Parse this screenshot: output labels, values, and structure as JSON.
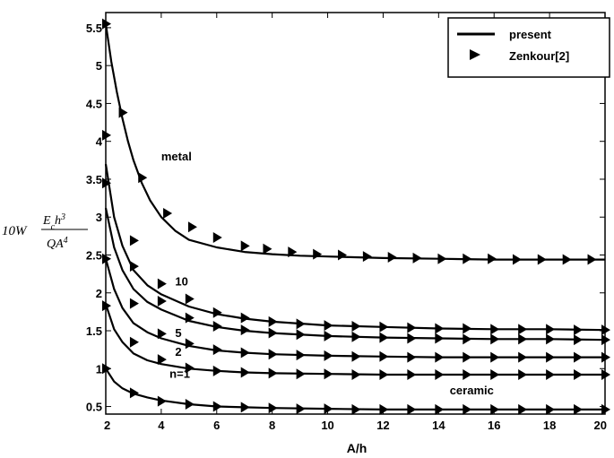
{
  "chart_data": {
    "type": "line",
    "title": "",
    "xlabel": "A/h",
    "ylabel": {
      "prefix": "10W",
      "numerator": "E_c h^3",
      "denominator": "QA^4"
    },
    "xlim": [
      2,
      20
    ],
    "ylim": [
      0.4,
      5.7
    ],
    "xticks": [
      2,
      4,
      6,
      8,
      10,
      12,
      14,
      16,
      18,
      20
    ],
    "yticks": [
      0.5,
      1,
      1.5,
      2,
      2.5,
      3,
      3.5,
      4,
      4.5,
      5,
      5.5
    ],
    "grid": false,
    "legend": {
      "position": "top-right",
      "entries": [
        {
          "label": "present",
          "marker": "line"
        },
        {
          "label": "Zenkour[2]",
          "marker": "triangle-right"
        }
      ]
    },
    "series": [
      {
        "name": "metal",
        "label_pos": [
          4.0,
          3.75
        ],
        "line_x": [
          2.0,
          2.2,
          2.4,
          2.6,
          2.8,
          3.0,
          3.3,
          3.6,
          4.0,
          4.5,
          5.0,
          6.0,
          7.0,
          8.0,
          9.0,
          10.0,
          12.0,
          14.0,
          16.0,
          18.0,
          20.0
        ],
        "line_y": [
          5.55,
          5.05,
          4.65,
          4.3,
          4.0,
          3.75,
          3.45,
          3.22,
          3.0,
          2.82,
          2.7,
          2.6,
          2.54,
          2.51,
          2.49,
          2.48,
          2.46,
          2.45,
          2.44,
          2.44,
          2.44
        ],
        "markers_x": [
          2.0,
          2.6,
          3.3,
          4.2,
          5.1,
          6.0,
          7.0,
          7.8,
          8.7,
          9.6,
          10.5,
          11.4,
          12.3,
          13.2,
          14.1,
          15.0,
          15.9,
          16.8,
          17.7,
          18.6,
          19.5
        ],
        "markers_y": [
          5.55,
          4.38,
          3.52,
          3.05,
          2.87,
          2.73,
          2.62,
          2.58,
          2.54,
          2.51,
          2.5,
          2.48,
          2.47,
          2.46,
          2.45,
          2.45,
          2.45,
          2.44,
          2.44,
          2.44,
          2.44
        ]
      },
      {
        "name": "10",
        "label_pos": [
          4.5,
          2.1
        ],
        "line_x": [
          2.0,
          2.3,
          2.6,
          3.0,
          3.5,
          4.0,
          5.0,
          6.0,
          7.0,
          8.0,
          10.0,
          12.0,
          14.0,
          16.0,
          18.0,
          20.0
        ],
        "line_y": [
          3.7,
          3.0,
          2.62,
          2.3,
          2.1,
          1.98,
          1.82,
          1.72,
          1.66,
          1.62,
          1.57,
          1.55,
          1.53,
          1.52,
          1.52,
          1.51
        ],
        "markers_x": [
          2.0,
          3.0,
          4.0,
          5.0,
          6.0,
          7.0,
          8.0,
          9.0,
          10.0,
          11.0,
          12.0,
          13.0,
          14.0,
          15.0,
          16.0,
          17.0,
          18.0,
          19.0,
          20.0
        ],
        "markers_y": [
          4.08,
          2.69,
          2.12,
          1.92,
          1.74,
          1.67,
          1.62,
          1.59,
          1.57,
          1.56,
          1.55,
          1.54,
          1.53,
          1.53,
          1.52,
          1.52,
          1.52,
          1.51,
          1.51
        ]
      },
      {
        "name": "5",
        "label_pos": [
          4.5,
          1.42
        ],
        "line_x": [
          2.0,
          2.3,
          2.6,
          3.0,
          3.5,
          4.0,
          5.0,
          6.0,
          7.0,
          8.0,
          10.0,
          12.0,
          14.0,
          16.0,
          18.0,
          20.0
        ],
        "line_y": [
          3.12,
          2.6,
          2.3,
          2.05,
          1.88,
          1.78,
          1.63,
          1.55,
          1.5,
          1.47,
          1.43,
          1.41,
          1.4,
          1.39,
          1.39,
          1.38
        ],
        "markers_x": [
          2.0,
          3.0,
          4.0,
          5.0,
          6.0,
          7.0,
          8.0,
          9.0,
          10.0,
          11.0,
          12.0,
          13.0,
          14.0,
          15.0,
          16.0,
          17.0,
          18.0,
          19.0,
          20.0
        ],
        "markers_y": [
          3.45,
          2.35,
          1.89,
          1.67,
          1.56,
          1.51,
          1.47,
          1.45,
          1.43,
          1.42,
          1.41,
          1.4,
          1.4,
          1.39,
          1.39,
          1.39,
          1.39,
          1.38,
          1.38
        ]
      },
      {
        "name": "2",
        "label_pos": [
          4.5,
          1.17
        ],
        "line_x": [
          2.0,
          2.3,
          2.6,
          3.0,
          3.5,
          4.0,
          5.0,
          6.0,
          7.0,
          8.0,
          10.0,
          12.0,
          14.0,
          16.0,
          18.0,
          20.0
        ],
        "line_y": [
          2.45,
          2.05,
          1.8,
          1.6,
          1.48,
          1.4,
          1.3,
          1.24,
          1.21,
          1.19,
          1.17,
          1.16,
          1.15,
          1.15,
          1.15,
          1.15
        ],
        "markers_x": [
          2.0,
          3.0,
          4.0,
          5.0,
          6.0,
          7.0,
          8.0,
          9.0,
          10.0,
          11.0,
          12.0,
          13.0,
          14.0,
          15.0,
          16.0,
          17.0,
          18.0,
          19.0,
          20.0
        ],
        "markers_y": [
          2.45,
          1.86,
          1.46,
          1.33,
          1.25,
          1.21,
          1.19,
          1.18,
          1.17,
          1.16,
          1.16,
          1.15,
          1.15,
          1.15,
          1.15,
          1.15,
          1.15,
          1.15,
          1.15
        ]
      },
      {
        "name": "n=1",
        "label_pos": [
          4.3,
          0.88
        ],
        "line_x": [
          2.0,
          2.3,
          2.6,
          3.0,
          3.5,
          4.0,
          5.0,
          6.0,
          7.0,
          8.0,
          10.0,
          12.0,
          14.0,
          16.0,
          18.0,
          20.0
        ],
        "line_y": [
          1.85,
          1.52,
          1.35,
          1.2,
          1.11,
          1.06,
          1.0,
          0.97,
          0.95,
          0.94,
          0.93,
          0.92,
          0.92,
          0.92,
          0.92,
          0.92
        ],
        "markers_x": [
          2.0,
          3.0,
          4.0,
          5.0,
          6.0,
          7.0,
          8.0,
          9.0,
          10.0,
          11.0,
          12.0,
          13.0,
          14.0,
          15.0,
          16.0,
          17.0,
          18.0,
          19.0,
          20.0
        ],
        "markers_y": [
          1.83,
          1.35,
          1.12,
          1.01,
          0.97,
          0.95,
          0.94,
          0.93,
          0.93,
          0.92,
          0.92,
          0.92,
          0.92,
          0.92,
          0.92,
          0.92,
          0.92,
          0.92,
          0.92
        ]
      },
      {
        "name": "ceramic",
        "label_pos": [
          14.4,
          0.66
        ],
        "line_x": [
          2.0,
          2.3,
          2.6,
          3.0,
          3.5,
          4.0,
          5.0,
          6.0,
          7.0,
          8.0,
          10.0,
          12.0,
          14.0,
          16.0,
          18.0,
          20.0
        ],
        "line_y": [
          1.0,
          0.83,
          0.74,
          0.67,
          0.62,
          0.58,
          0.53,
          0.5,
          0.49,
          0.48,
          0.47,
          0.46,
          0.46,
          0.46,
          0.46,
          0.46
        ],
        "markers_x": [
          2.0,
          3.0,
          4.0,
          5.0,
          6.0,
          7.0,
          8.0,
          9.0,
          10.0,
          11.0,
          12.0,
          13.0,
          14.0,
          15.0,
          16.0,
          17.0,
          18.0,
          19.0,
          20.0
        ],
        "markers_y": [
          1.0,
          0.68,
          0.57,
          0.53,
          0.5,
          0.49,
          0.48,
          0.47,
          0.47,
          0.46,
          0.46,
          0.46,
          0.46,
          0.46,
          0.46,
          0.46,
          0.46,
          0.46,
          0.46
        ]
      }
    ]
  }
}
